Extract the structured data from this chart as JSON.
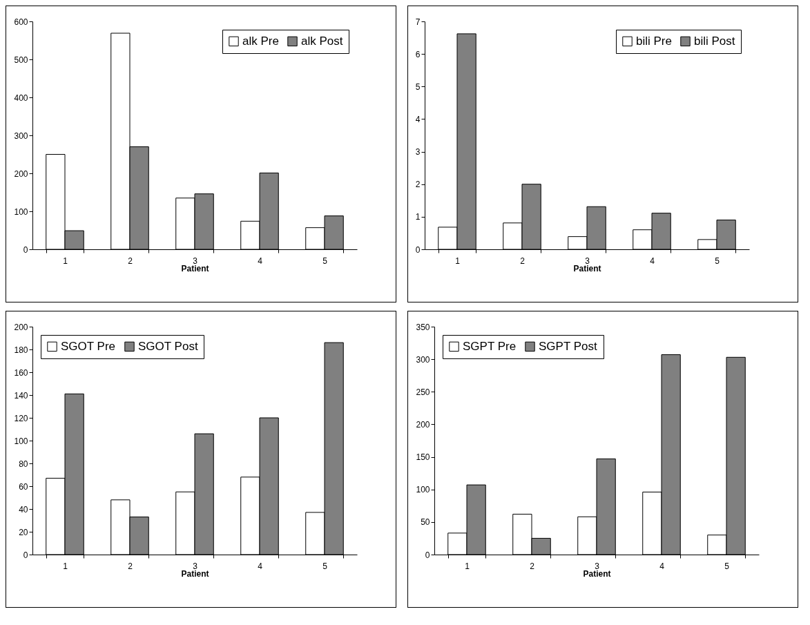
{
  "chart_data": [
    {
      "type": "bar",
      "xlabel": "Patient",
      "categories": [
        "1",
        "2",
        "3",
        "4",
        "5"
      ],
      "series": [
        {
          "name": "alk Pre",
          "color": "#ffffff",
          "values": [
            250,
            569,
            135,
            74,
            57
          ]
        },
        {
          "name": "alk Post",
          "color": "#808080",
          "values": [
            49,
            270,
            146,
            201,
            88
          ]
        }
      ],
      "ylim": [
        0,
        600
      ],
      "yticks": [
        0,
        100,
        200,
        300,
        400,
        500,
        600
      ],
      "grid": false,
      "legend": "top right"
    },
    {
      "type": "bar",
      "xlabel": "Patient",
      "categories": [
        "1",
        "2",
        "3",
        "4",
        "5"
      ],
      "series": [
        {
          "name": "bili Pre",
          "color": "#ffffff",
          "values": [
            0.68,
            0.81,
            0.39,
            0.6,
            0.3
          ]
        },
        {
          "name": "bili Post",
          "color": "#808080",
          "values": [
            6.62,
            2.0,
            1.31,
            1.11,
            0.9
          ]
        }
      ],
      "ylim": [
        0,
        7
      ],
      "yticks": [
        0,
        1,
        2,
        3,
        4,
        5,
        6,
        7
      ],
      "grid": false,
      "legend": "top right"
    },
    {
      "type": "bar",
      "xlabel": "Patient",
      "categories": [
        "1",
        "2",
        "3",
        "4",
        "5"
      ],
      "series": [
        {
          "name": "SGOT Pre",
          "color": "#ffffff",
          "values": [
            67,
            48,
            55,
            68,
            37
          ]
        },
        {
          "name": "SGOT Post",
          "color": "#808080",
          "values": [
            141,
            33,
            106,
            120,
            186
          ]
        }
      ],
      "ylim": [
        0,
        200
      ],
      "yticks": [
        0,
        20,
        40,
        60,
        80,
        100,
        120,
        140,
        160,
        180,
        200
      ],
      "grid": false,
      "legend": "top left"
    },
    {
      "type": "bar",
      "xlabel": "Patient",
      "categories": [
        "1",
        "2",
        "3",
        "4",
        "5"
      ],
      "series": [
        {
          "name": "SGPT Pre",
          "color": "#ffffff",
          "values": [
            33,
            62,
            58,
            96,
            30
          ]
        },
        {
          "name": "SGPT Post",
          "color": "#808080",
          "values": [
            107,
            25,
            147,
            307,
            303
          ]
        }
      ],
      "ylim": [
        0,
        350
      ],
      "yticks": [
        0,
        50,
        100,
        150,
        200,
        250,
        300,
        350
      ],
      "grid": false,
      "legend": "top left"
    }
  ]
}
